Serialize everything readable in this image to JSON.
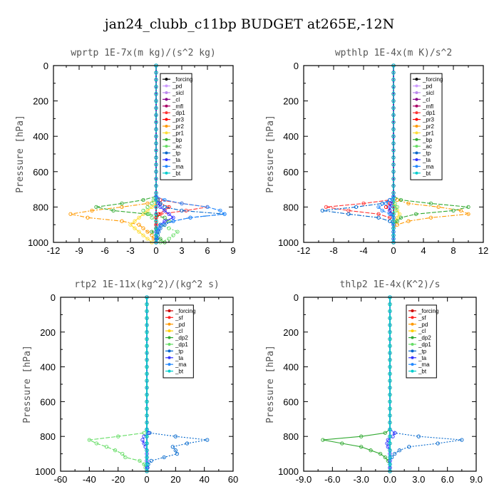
{
  "figure_title": "jan24_clubb_c11bp  BUDGET at265E,-12N",
  "chart_data": [
    {
      "type": "line",
      "title": "wprtp   1E-7x(m kg)/(s^2 kg)",
      "ylabel": "Pressure [hPa]",
      "xlim": [
        -12,
        9
      ],
      "ylim": [
        1000,
        0
      ],
      "xticks": [
        "-12",
        "-9",
        "-6",
        "-3",
        "0",
        "3",
        "6",
        "9"
      ],
      "yticks": [
        "0",
        "200",
        "400",
        "600",
        "800",
        "1000"
      ],
      "pressure_levels": [
        740,
        760,
        780,
        800,
        820,
        840,
        860,
        880,
        900,
        920,
        940,
        960,
        980,
        1000
      ],
      "series": [
        {
          "name": "_forcing",
          "color": "#000000",
          "values": [
            0,
            0,
            0,
            0,
            0,
            0,
            0,
            0,
            0,
            0,
            0,
            0,
            0,
            0
          ]
        },
        {
          "name": "_pd",
          "color": "#cc99ff",
          "values": [
            0,
            0,
            0,
            0,
            0,
            0,
            0,
            0,
            0,
            0,
            0,
            0,
            0,
            0
          ]
        },
        {
          "name": "_sicl",
          "color": "#bb88ee",
          "values": [
            0,
            0,
            0,
            0,
            0,
            0,
            0,
            0,
            0,
            0,
            0,
            0,
            0,
            0
          ]
        },
        {
          "name": "_cl",
          "color": "#880088",
          "values": [
            0,
            0,
            0,
            0,
            0,
            0,
            0,
            0,
            0,
            0,
            0,
            0,
            0,
            0
          ]
        },
        {
          "name": "_mfl",
          "color": "#aa0066",
          "values": [
            0,
            0,
            0,
            0,
            0,
            0,
            0,
            0,
            0,
            0,
            0,
            0,
            0,
            0
          ]
        },
        {
          "name": "_dp1",
          "color": "#ff3333",
          "values": [
            0,
            0.5,
            3,
            6,
            3.5,
            0.5,
            0,
            0,
            0,
            0,
            0,
            0,
            0,
            0
          ]
        },
        {
          "name": "_pr3",
          "color": "#ff0000",
          "values": [
            0,
            0,
            0.5,
            1.5,
            1,
            0.3,
            0,
            0,
            0,
            0,
            0,
            0,
            0,
            0
          ]
        },
        {
          "name": "_pr2",
          "color": "#ff9900",
          "values": [
            0,
            0,
            -1,
            -4,
            -7.5,
            -10,
            -8,
            -4,
            -2,
            -1.5,
            -1,
            -0.5,
            -0.3,
            0
          ]
        },
        {
          "name": "_pr1",
          "color": "#ffdd33",
          "values": [
            0,
            0,
            0,
            -0.5,
            -1,
            -1.5,
            -2,
            -2.5,
            -3,
            -2.5,
            -2,
            -1.5,
            -1,
            -0.5
          ]
        },
        {
          "name": "_bp",
          "color": "#33aa33",
          "values": [
            0,
            -1.5,
            -4,
            -7,
            -5,
            -1,
            1,
            1.5,
            0.5,
            0,
            -0.5,
            0,
            0.5,
            1
          ]
        },
        {
          "name": "_ac",
          "color": "#66dd66",
          "values": [
            0,
            -0.3,
            -0.5,
            -1,
            -1.5,
            -0.8,
            -0.5,
            0,
            0.5,
            1.5,
            2.5,
            2,
            1.5,
            0.5
          ]
        },
        {
          "name": "_tp",
          "color": "#0066cc",
          "values": [
            0,
            0.2,
            0.5,
            1,
            3,
            8,
            4,
            2,
            1,
            0.5,
            0.3,
            0.2,
            0.1,
            0
          ]
        },
        {
          "name": "_ta",
          "color": "#3333ff",
          "values": [
            0,
            0,
            0.2,
            0.5,
            1,
            1.5,
            2,
            1,
            0.5,
            0.3,
            0,
            0,
            0,
            0
          ]
        },
        {
          "name": "_ma",
          "color": "#2288ff",
          "values": [
            0,
            1,
            3,
            6,
            7.5,
            8,
            4,
            2,
            0.5,
            0.3,
            0,
            0,
            0,
            0
          ]
        },
        {
          "name": "_bt",
          "color": "#00cccc",
          "values": [
            0,
            0,
            0,
            0,
            0,
            0,
            0,
            0,
            0,
            0,
            0,
            0,
            0,
            0
          ]
        }
      ]
    },
    {
      "type": "line",
      "title": "wpthlp   1E-4x(m K)/s^2",
      "ylabel": "Pressure [hPa]",
      "xlim": [
        -12,
        12
      ],
      "ylim": [
        1000,
        0
      ],
      "xticks": [
        "-12",
        "-8",
        "-4",
        "0",
        "4",
        "8",
        "12"
      ],
      "yticks": [
        "0",
        "200",
        "400",
        "600",
        "800",
        "1000"
      ],
      "pressure_levels": [
        740,
        760,
        780,
        800,
        820,
        840,
        860,
        880,
        900,
        920,
        940,
        960,
        980,
        1000
      ],
      "series": [
        {
          "name": "_forcing",
          "color": "#000000",
          "values": [
            0,
            0,
            0,
            0,
            0,
            0,
            0,
            0,
            0,
            0,
            0,
            0,
            0,
            0
          ]
        },
        {
          "name": "_pd",
          "color": "#cc99ff",
          "values": [
            0,
            0,
            0,
            0,
            0,
            0,
            0,
            0,
            0,
            0,
            0,
            0,
            0,
            0
          ]
        },
        {
          "name": "_sicl",
          "color": "#bb88ee",
          "values": [
            0,
            0,
            0,
            0,
            0,
            0,
            0,
            0,
            0,
            0,
            0,
            0,
            0,
            0
          ]
        },
        {
          "name": "_cl",
          "color": "#880088",
          "values": [
            0,
            0,
            0,
            0,
            0,
            0,
            0,
            0,
            0,
            0,
            0,
            0,
            0,
            0
          ]
        },
        {
          "name": "_mfl",
          "color": "#aa0066",
          "values": [
            0,
            0,
            0,
            0,
            0,
            0,
            0,
            0,
            0,
            0,
            0,
            0,
            0,
            0
          ]
        },
        {
          "name": "_dp1",
          "color": "#ff3333",
          "values": [
            0,
            -0.5,
            -4,
            -9,
            -6,
            -2,
            -0.5,
            0,
            0,
            0,
            0,
            0,
            0,
            0
          ]
        },
        {
          "name": "_pr3",
          "color": "#ff0000",
          "values": [
            0,
            0,
            -0.5,
            -1,
            -0.5,
            0,
            0,
            0,
            0,
            0,
            0,
            0,
            0,
            0
          ]
        },
        {
          "name": "_pr2",
          "color": "#ff9900",
          "values": [
            0,
            0.5,
            2,
            6,
            9,
            10,
            5,
            2,
            0.5,
            0,
            0,
            0,
            0,
            0
          ]
        },
        {
          "name": "_pr1",
          "color": "#ffdd33",
          "values": [
            0,
            0,
            0,
            0.3,
            0.5,
            0.8,
            0.5,
            0.3,
            0,
            0,
            0,
            0,
            0,
            0
          ]
        },
        {
          "name": "_bp",
          "color": "#33aa33",
          "values": [
            0,
            1,
            5,
            10,
            8,
            3,
            1,
            0.5,
            0,
            0,
            0,
            0,
            0,
            0
          ]
        },
        {
          "name": "_ac",
          "color": "#66dd66",
          "values": [
            0,
            0,
            0.2,
            0.5,
            0.3,
            0,
            0,
            0,
            0,
            0,
            0,
            0,
            0,
            0
          ]
        },
        {
          "name": "_tp",
          "color": "#0066cc",
          "values": [
            0,
            -0.5,
            -1.5,
            -5,
            -9.5,
            -6,
            -2,
            -0.5,
            0,
            0,
            0,
            0,
            0,
            0
          ]
        },
        {
          "name": "_ta",
          "color": "#3333ff",
          "values": [
            0,
            0,
            -0.3,
            -0.5,
            -0.5,
            -0.3,
            0,
            0,
            0,
            0,
            0,
            0,
            0,
            0
          ]
        },
        {
          "name": "_ma",
          "color": "#2288ff",
          "values": [
            0,
            -0.5,
            -1,
            -2,
            -1.5,
            -0.5,
            0,
            0,
            0,
            0,
            0,
            0,
            0,
            0
          ]
        },
        {
          "name": "_bt",
          "color": "#00cccc",
          "values": [
            0,
            0,
            0,
            0,
            0,
            0,
            0,
            0,
            0,
            0,
            0,
            0,
            0,
            0
          ]
        }
      ]
    },
    {
      "type": "line",
      "title": "rtp2   1E-11x(kg^2)/(kg^2 s)",
      "ylabel": "Pressure [hPa]",
      "xlim": [
        -60,
        60
      ],
      "ylim": [
        1000,
        0
      ],
      "xticks": [
        "-60",
        "-40",
        "-20",
        "0",
        "20",
        "40",
        "60"
      ],
      "yticks": [
        "0",
        "200",
        "400",
        "600",
        "800",
        "1000"
      ],
      "pressure_levels": [
        760,
        780,
        800,
        820,
        840,
        860,
        880,
        900,
        920,
        940,
        960,
        980,
        1000
      ],
      "series": [
        {
          "name": "_forcing",
          "color": "#cc0000",
          "values": [
            0,
            0,
            0,
            0,
            0,
            0,
            0,
            0,
            0,
            0,
            0,
            0,
            0
          ]
        },
        {
          "name": "_sf",
          "color": "#ff2222",
          "values": [
            0,
            0,
            0,
            0,
            0,
            0,
            0,
            0,
            0,
            0,
            0,
            0,
            0
          ]
        },
        {
          "name": "_pd",
          "color": "#ff9900",
          "values": [
            0,
            0,
            0,
            0,
            0,
            0,
            0,
            0,
            0,
            0,
            0,
            0,
            0
          ]
        },
        {
          "name": "_cl",
          "color": "#ffcc00",
          "values": [
            0,
            0,
            0,
            0,
            0,
            0,
            0,
            0,
            0,
            0,
            0,
            0,
            0
          ]
        },
        {
          "name": "_dp2",
          "color": "#33aa33",
          "values": [
            0,
            0,
            0,
            0,
            0,
            0,
            0,
            0,
            0,
            0,
            0,
            0,
            0
          ]
        },
        {
          "name": "_dp1",
          "color": "#66dd66",
          "values": [
            0,
            -2,
            -20,
            -40,
            -35,
            -28,
            -22,
            -17,
            -15,
            -5,
            -2,
            -1,
            0
          ]
        },
        {
          "name": "_tp",
          "color": "#0066cc",
          "values": [
            0,
            2,
            20,
            42,
            28,
            18,
            20,
            21,
            12,
            3,
            1,
            0.5,
            0
          ]
        },
        {
          "name": "_ta",
          "color": "#3333ff",
          "values": [
            0,
            1,
            -2,
            -3,
            -2,
            -1,
            0,
            0,
            0,
            0,
            0,
            0,
            0
          ]
        },
        {
          "name": "_ma",
          "color": "#2288ff",
          "values": [
            0,
            0,
            0,
            0,
            0,
            0,
            0,
            0,
            0,
            0,
            0,
            0,
            0
          ]
        },
        {
          "name": "_bt",
          "color": "#00cccc",
          "values": [
            0,
            0,
            0,
            0,
            0,
            0,
            0,
            0,
            0,
            0,
            0,
            0,
            0
          ]
        }
      ]
    },
    {
      "type": "line",
      "title": "thlp2   1E-4x(K^2)/s",
      "ylabel": "Pressure [hPa]",
      "xlim": [
        -9,
        9
      ],
      "ylim": [
        1000,
        0
      ],
      "xticks": [
        "-9.0",
        "-6.0",
        "-3.0",
        "0.0",
        "3.0",
        "6.0",
        "9.0"
      ],
      "yticks": [
        "0",
        "200",
        "400",
        "600",
        "800",
        "1000"
      ],
      "pressure_levels": [
        760,
        780,
        800,
        820,
        840,
        860,
        880,
        900,
        920,
        940,
        960,
        980,
        1000
      ],
      "series": [
        {
          "name": "_forcing",
          "color": "#cc0000",
          "values": [
            0,
            0,
            0,
            0,
            0,
            0,
            0,
            0,
            0,
            0,
            0,
            0,
            0
          ]
        },
        {
          "name": "_sf",
          "color": "#ff2222",
          "values": [
            0,
            0,
            0,
            0,
            0,
            0,
            0,
            0,
            0,
            0,
            0,
            0,
            0
          ]
        },
        {
          "name": "_pd",
          "color": "#ff9900",
          "values": [
            0,
            0,
            0,
            0,
            0,
            0,
            0,
            0,
            0,
            0,
            0,
            0,
            0
          ]
        },
        {
          "name": "_cl",
          "color": "#ffcc00",
          "values": [
            0,
            0,
            0,
            0,
            0,
            0,
            0,
            0,
            0,
            0,
            0,
            0,
            0
          ]
        },
        {
          "name": "_dp2",
          "color": "#33aa33",
          "values": [
            0,
            -0.5,
            -3,
            -7,
            -5,
            -3,
            -2,
            -1,
            -0.5,
            -0.2,
            0,
            0,
            0
          ]
        },
        {
          "name": "_dp1",
          "color": "#66dd66",
          "values": [
            0,
            0,
            0,
            0,
            0,
            0,
            0,
            0,
            0,
            0,
            0,
            0,
            0
          ]
        },
        {
          "name": "_tp",
          "color": "#0066cc",
          "values": [
            0,
            0.5,
            3,
            7.5,
            5,
            2,
            1,
            0.5,
            0.2,
            0,
            0,
            0,
            0
          ]
        },
        {
          "name": "_ta",
          "color": "#3333ff",
          "values": [
            0,
            0.5,
            0.3,
            -0.2,
            -0.3,
            -0.2,
            0,
            0,
            0,
            0,
            0,
            0,
            0
          ]
        },
        {
          "name": "_ma",
          "color": "#2288ff",
          "values": [
            0,
            0,
            0,
            0,
            0,
            0,
            0,
            0,
            0,
            0,
            0,
            0,
            0
          ]
        },
        {
          "name": "_bt",
          "color": "#00cccc",
          "values": [
            0,
            0,
            0,
            0,
            0,
            0,
            0,
            0,
            0,
            0,
            0,
            0,
            0
          ]
        }
      ]
    }
  ]
}
